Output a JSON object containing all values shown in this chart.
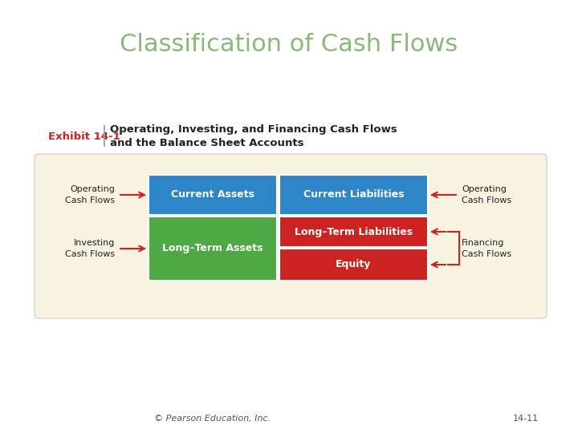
{
  "title": "Classification of Cash Flows",
  "title_color": "#8ab87a",
  "title_fontsize": 22,
  "exhibit_label": "Exhibit 14-1",
  "exhibit_label_color": "#cc2222",
  "exhibit_title_line1": "Operating, Investing, and Financing Cash Flows",
  "exhibit_title_line2": "and the Balance Sheet Accounts",
  "exhibit_fontsize": 9.5,
  "bg_color": "#ffffff",
  "panel_bg": "#f7f3e0",
  "blue_color": "#2e86c8",
  "green_color": "#4ea843",
  "red_color": "#cc2222",
  "dark_text": "#222222",
  "arrow_color": "#cc2222",
  "copyright": "© Pearson Education, Inc.",
  "page_num": "14-11",
  "footer_fontsize": 8
}
